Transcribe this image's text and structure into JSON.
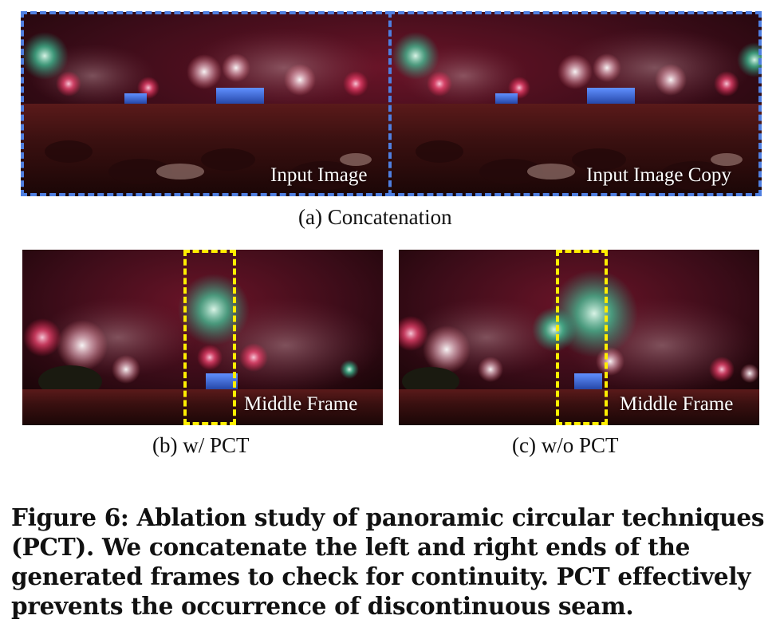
{
  "figure": {
    "panel_a": {
      "label_left": "Input Image",
      "label_right": "Input Image Copy",
      "subcaption": "(a) Concatenation"
    },
    "panel_b": {
      "label": "Middle Frame",
      "subcaption": "(b) w/ PCT"
    },
    "panel_c": {
      "label": "Middle Frame",
      "subcaption": "(c) w/o PCT"
    },
    "caption": "Figure 6: Ablation study of panoramic circular techniques (PCT). We concatenate the left and right ends of the generated frames to check for continuity. PCT effectively prevents the occurrence of discontinuous seam.",
    "colors": {
      "concat_box": "#4f7fe0",
      "seam_box": "#ffee00"
    }
  }
}
